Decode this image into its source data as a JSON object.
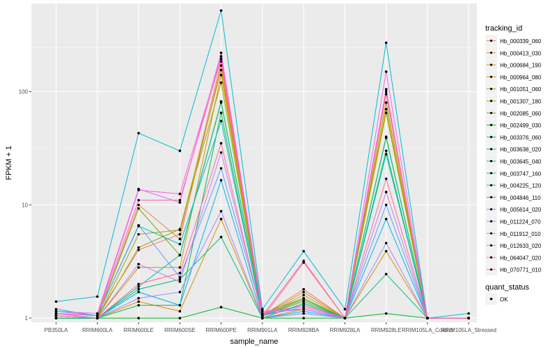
{
  "chart_data": {
    "type": "line",
    "xlabel": "sample_name",
    "ylabel": "FPKM + 1",
    "y_scale": "log10",
    "ylim": [
      0.92,
      600
    ],
    "y_ticks": [
      1,
      10,
      100
    ],
    "y_tick_labels": [
      "1",
      "10",
      "100"
    ],
    "categories": [
      "PB350LA",
      "RRIM600LA",
      "RRIM600LE",
      "RRIM600SE",
      "RRIM600PE",
      "RRIM901LA",
      "RRIM928BA",
      "RRIM928LA",
      "RRIM928LE",
      "RRIM105LA_Control",
      "RRIM105LA_Stressed"
    ],
    "legend_title": "tracking_id",
    "legend_position": "right",
    "grid": true,
    "series": [
      {
        "name": "Hb_000339_060",
        "color": "#F8766D",
        "values": [
          1.1,
          1.05,
          4.0,
          5.5,
          185,
          1.05,
          1.8,
          1.0,
          95,
          1.0,
          1.0
        ]
      },
      {
        "name": "Hb_000413_030",
        "color": "#EE8044",
        "values": [
          1.05,
          1.0,
          10.0,
          5.0,
          170,
          1.05,
          1.6,
          1.0,
          80,
          1.0,
          1.0
        ]
      },
      {
        "name": "Hb_000684_190",
        "color": "#E08B00",
        "values": [
          1.05,
          1.0,
          1.4,
          1.15,
          7.5,
          1.0,
          1.2,
          1.0,
          3.9,
          1.0,
          1.0
        ]
      },
      {
        "name": "Hb_000964_080",
        "color": "#CE9700",
        "values": [
          1.0,
          1.0,
          2.8,
          2.8,
          140,
          1.05,
          1.5,
          1.0,
          70,
          1.0,
          1.0
        ]
      },
      {
        "name": "Hb_001051_060",
        "color": "#B5A000",
        "values": [
          1.0,
          1.0,
          5.5,
          6.0,
          155,
          1.05,
          1.7,
          1.0,
          80,
          1.0,
          1.0
        ]
      },
      {
        "name": "Hb_001307_180",
        "color": "#97A900",
        "values": [
          1.0,
          1.0,
          4.2,
          6.1,
          120,
          1.05,
          1.4,
          1.0,
          65,
          1.0,
          1.0
        ]
      },
      {
        "name": "Hb_002085_060",
        "color": "#6BB100",
        "values": [
          1.05,
          1.0,
          9.3,
          3.6,
          80,
          1.1,
          1.5,
          1.0,
          40,
          1.0,
          1.0
        ]
      },
      {
        "name": "Hb_002499_030",
        "color": "#00B81F",
        "values": [
          1.0,
          1.0,
          1.0,
          1.0,
          1.25,
          1.0,
          1.0,
          1.0,
          1.1,
          1.0,
          1.0
        ]
      },
      {
        "name": "Hb_003376_060",
        "color": "#00BC56",
        "values": [
          1.0,
          1.0,
          1.3,
          1.3,
          65,
          1.0,
          1.35,
          1.0,
          30,
          1.0,
          1.0
        ]
      },
      {
        "name": "Hb_003638_020",
        "color": "#00BF7D",
        "values": [
          1.0,
          1.0,
          1.8,
          2.2,
          5.2,
          1.0,
          1.1,
          1.0,
          2.45,
          1.0,
          1.0
        ]
      },
      {
        "name": "Hb_003645_040",
        "color": "#00C09F",
        "values": [
          1.0,
          1.0,
          1.9,
          3.6,
          82,
          1.05,
          1.45,
          1.0,
          39,
          1.0,
          1.0
        ]
      },
      {
        "name": "Hb_003747_160",
        "color": "#00BFBD",
        "values": [
          1.2,
          1.05,
          6.5,
          4.5,
          55,
          1.05,
          1.3,
          1.0,
          28,
          1.0,
          1.0
        ]
      },
      {
        "name": "Hb_004225_120",
        "color": "#00BBD8",
        "values": [
          1.4,
          1.55,
          43,
          30,
          520,
          1.2,
          3.9,
          1.2,
          270,
          1.0,
          1.1
        ]
      },
      {
        "name": "Hb_004846_110",
        "color": "#00B2EF",
        "values": [
          1.1,
          1.0,
          1.7,
          1.3,
          16.5,
          1.0,
          1.15,
          1.0,
          7.5,
          1.0,
          1.0
        ]
      },
      {
        "name": "Hb_005614_020",
        "color": "#619CFF",
        "values": [
          1.15,
          1.05,
          6.6,
          2.3,
          21,
          1.1,
          1.2,
          1.0,
          10,
          1.0,
          1.0
        ]
      },
      {
        "name": "Hb_011224_070",
        "color": "#9F8CFF",
        "values": [
          1.05,
          1.0,
          1.5,
          1.7,
          8.8,
          1.0,
          1.1,
          1.0,
          4.6,
          1.0,
          1.0
        ]
      },
      {
        "name": "Hb_011912_010",
        "color": "#CB7CF6",
        "values": [
          1.1,
          1.0,
          3.0,
          2.1,
          29,
          1.05,
          1.25,
          1.0,
          13,
          1.0,
          1.0
        ]
      },
      {
        "name": "Hb_012633_020",
        "color": "#E76BF3",
        "values": [
          1.15,
          1.1,
          13.8,
          10.5,
          220,
          1.15,
          1.2,
          1.0,
          150,
          1.0,
          1.0
        ]
      },
      {
        "name": "Hb_064047_020",
        "color": "#F863DF",
        "values": [
          1.1,
          1.05,
          13.5,
          12.5,
          205,
          1.1,
          1.3,
          1.0,
          105,
          1.0,
          1.0
        ]
      },
      {
        "name": "Hb_070771_010",
        "color": "#FF64B0",
        "values": [
          1.1,
          1.05,
          11.0,
          11.0,
          195,
          1.05,
          3.2,
          1.0,
          100,
          1.0,
          1.0
        ]
      },
      {
        "name": "",
        "color": "#FF6C91",
        "values": [
          1.05,
          1.0,
          2.0,
          2.5,
          35,
          1.0,
          3.1,
          1.0,
          17,
          1.0,
          1.0
        ]
      }
    ],
    "legend2_title": "quant_status",
    "legend2_items": [
      {
        "label": "OK"
      }
    ]
  }
}
